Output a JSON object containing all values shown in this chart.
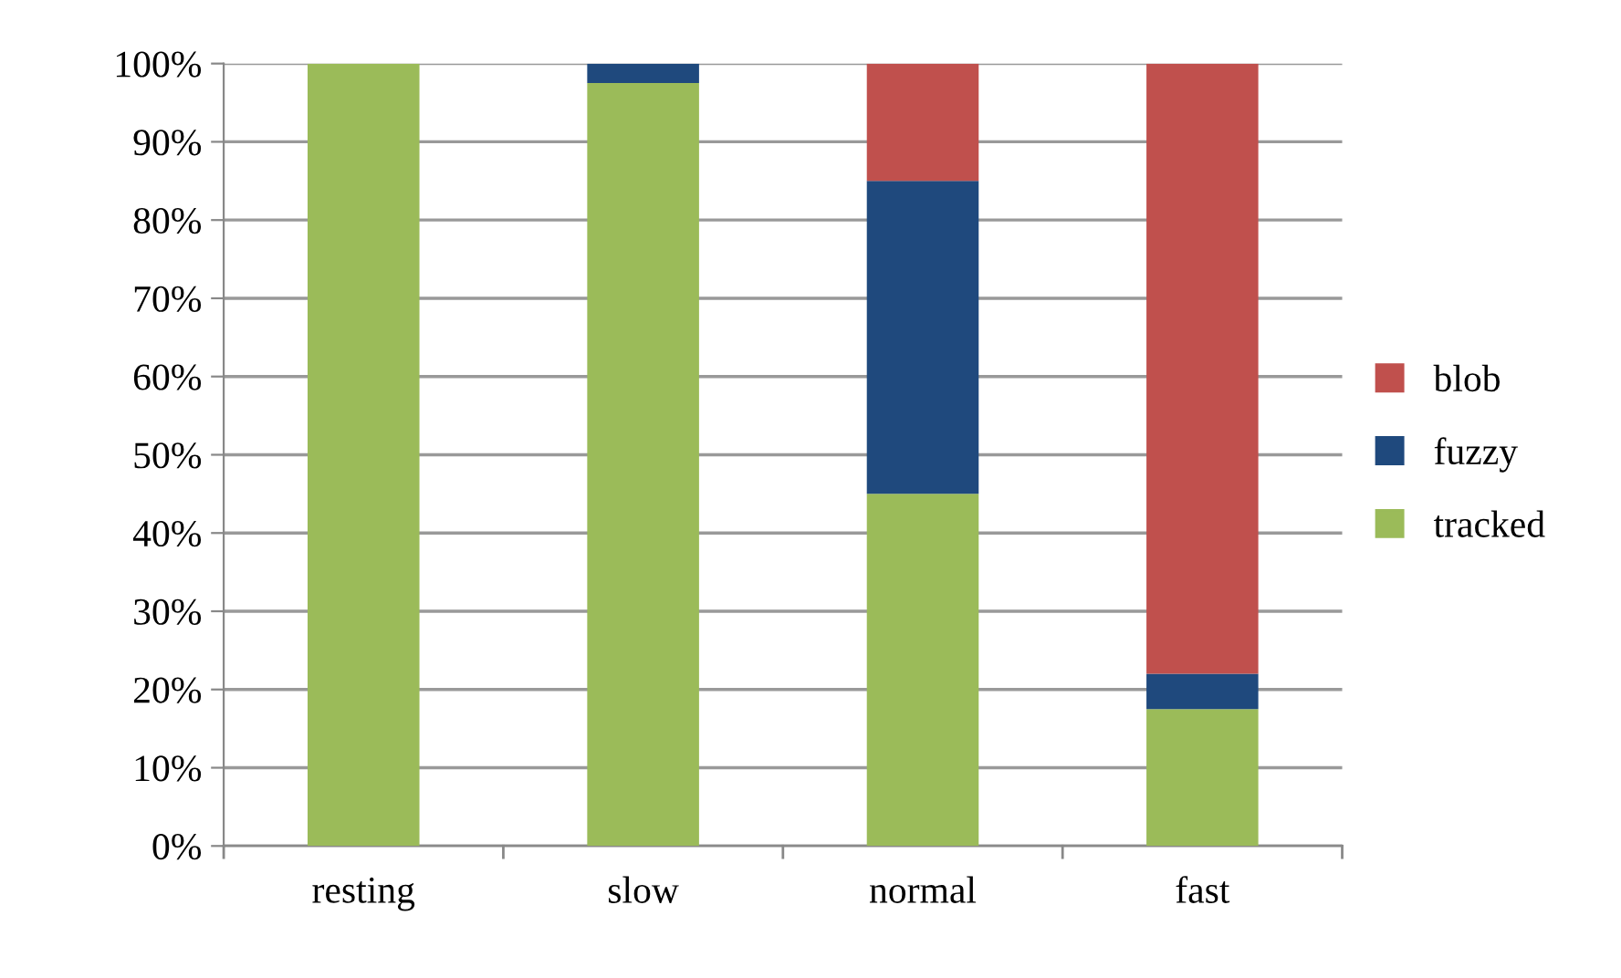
{
  "chart_data": {
    "type": "bar",
    "stacked": true,
    "categories": [
      "resting",
      "slow",
      "normal",
      "fast"
    ],
    "series": [
      {
        "name": "tracked",
        "color": "#9bbb59",
        "values": [
          100,
          97.5,
          45,
          17.5
        ]
      },
      {
        "name": "fuzzy",
        "color": "#1f497d",
        "values": [
          0,
          2.5,
          40,
          4.5
        ]
      },
      {
        "name": "blob",
        "color": "#c0504d",
        "values": [
          0,
          0,
          15,
          78
        ]
      }
    ],
    "ylim": [
      0,
      100
    ],
    "yticks": [
      {
        "value": 0,
        "label": "0%"
      },
      {
        "value": 10,
        "label": "10%"
      },
      {
        "value": 20,
        "label": "20%"
      },
      {
        "value": 30,
        "label": "30%"
      },
      {
        "value": 40,
        "label": "40%"
      },
      {
        "value": 50,
        "label": "50%"
      },
      {
        "value": 60,
        "label": "60%"
      },
      {
        "value": 70,
        "label": "70%"
      },
      {
        "value": 80,
        "label": "80%"
      },
      {
        "value": 90,
        "label": "90%"
      },
      {
        "value": 100,
        "label": "100%"
      }
    ],
    "grid": "y",
    "legend": "right"
  }
}
